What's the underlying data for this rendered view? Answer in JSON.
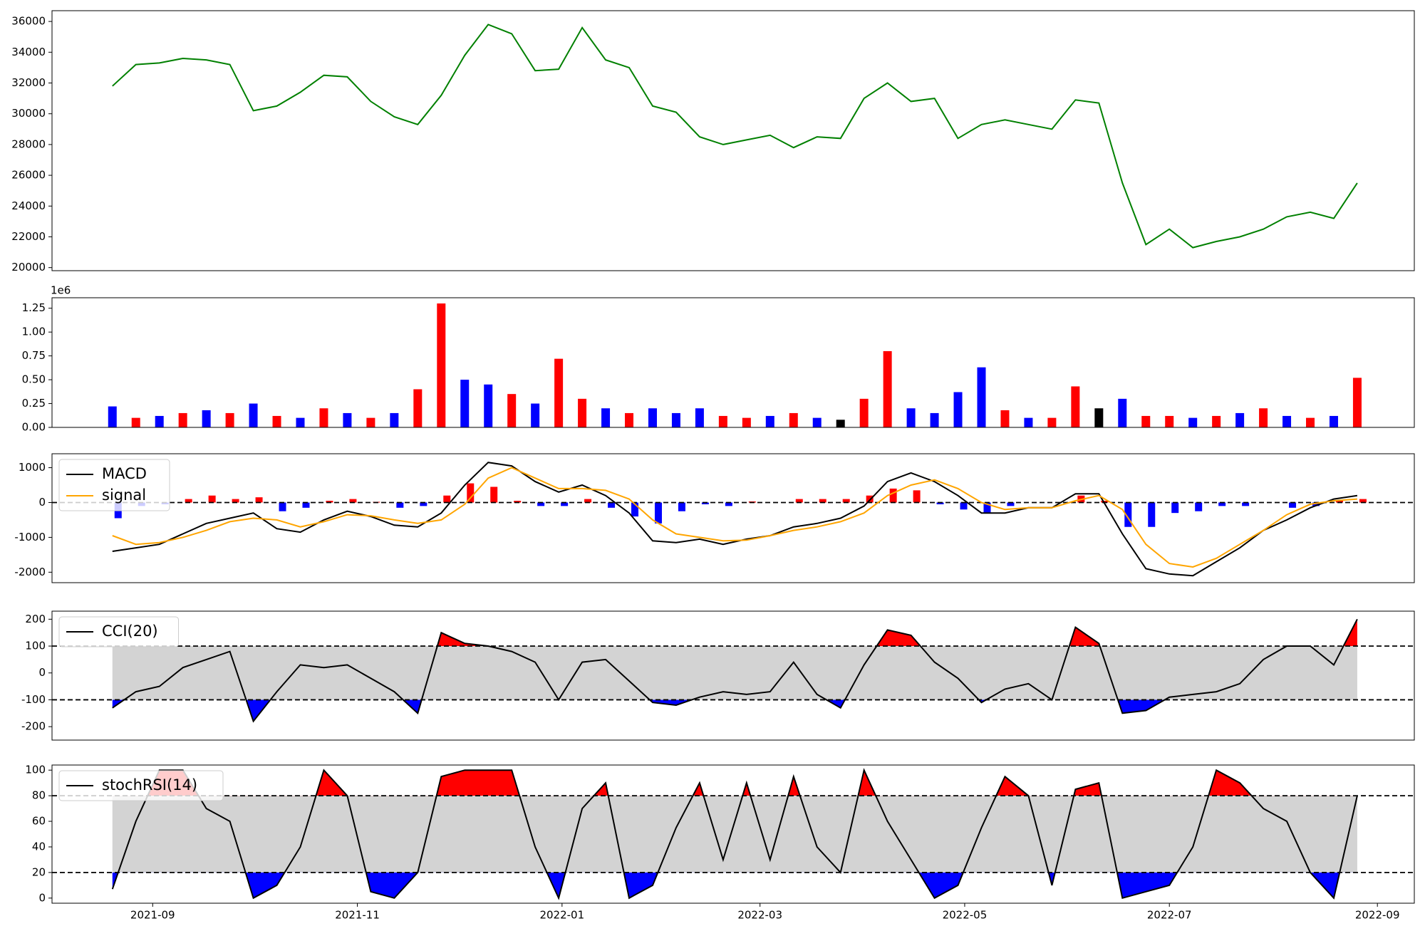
{
  "chart_data": {
    "type": "multi-panel",
    "x": [
      "2021-08-20",
      "2021-08-27",
      "2021-09-03",
      "2021-09-10",
      "2021-09-17",
      "2021-09-24",
      "2021-10-01",
      "2021-10-08",
      "2021-10-15",
      "2021-10-22",
      "2021-10-29",
      "2021-11-05",
      "2021-11-12",
      "2021-11-19",
      "2021-11-26",
      "2021-12-03",
      "2021-12-10",
      "2021-12-17",
      "2021-12-24",
      "2021-12-31",
      "2022-01-07",
      "2022-01-14",
      "2022-01-21",
      "2022-01-28",
      "2022-02-04",
      "2022-02-11",
      "2022-02-18",
      "2022-02-25",
      "2022-03-04",
      "2022-03-11",
      "2022-03-18",
      "2022-03-25",
      "2022-04-01",
      "2022-04-08",
      "2022-04-15",
      "2022-04-22",
      "2022-04-29",
      "2022-05-06",
      "2022-05-13",
      "2022-05-20",
      "2022-05-27",
      "2022-06-03",
      "2022-06-10",
      "2022-06-17",
      "2022-06-24",
      "2022-07-01",
      "2022-07-08",
      "2022-07-15",
      "2022-07-22",
      "2022-07-29",
      "2022-08-05",
      "2022-08-12",
      "2022-08-19",
      "2022-08-26"
    ],
    "xlim": [
      "2021-08-02",
      "2022-09-12"
    ],
    "xticks": [
      {
        "value": "2021-09-01",
        "label": "2021-09"
      },
      {
        "value": "2021-11-01",
        "label": "2021-11"
      },
      {
        "value": "2022-01-01",
        "label": "2022-01"
      },
      {
        "value": "2022-03-01",
        "label": "2022-03"
      },
      {
        "value": "2022-05-01",
        "label": "2022-05"
      },
      {
        "value": "2022-07-01",
        "label": "2022-07"
      },
      {
        "value": "2022-09-01",
        "label": "2022-09"
      }
    ],
    "panels": [
      {
        "type": "line",
        "ylim": [
          19800,
          36700
        ],
        "yticks": [
          20000,
          22000,
          24000,
          26000,
          28000,
          30000,
          32000,
          34000,
          36000
        ],
        "series": [
          {
            "color": "green",
            "values": [
              31800,
              33200,
              33300,
              33600,
              33500,
              33200,
              30200,
              30500,
              31400,
              32500,
              32400,
              30800,
              29800,
              29300,
              31200,
              33800,
              35800,
              35200,
              32800,
              32900,
              35600,
              33500,
              33000,
              30500,
              30100,
              28500,
              28000,
              28300,
              28600,
              27800,
              28500,
              28400,
              31000,
              32000,
              30800,
              31000,
              28400,
              29300,
              29600,
              29300,
              29000,
              30900,
              30700,
              25500,
              21500,
              22500,
              21300,
              21700,
              22000,
              22500,
              23300,
              23600,
              23200,
              25500
            ]
          }
        ]
      },
      {
        "type": "bar",
        "offset_text": "1e6",
        "ylim": [
          0,
          1.36
        ],
        "yticks": [
          {
            "value": 0,
            "label": "0.00"
          },
          {
            "value": 0.25,
            "label": "0.25"
          },
          {
            "value": 0.5,
            "label": "0.50"
          },
          {
            "value": 0.75,
            "label": "0.75"
          },
          {
            "value": 1,
            "label": "1.00"
          },
          {
            "value": 1.25,
            "label": "1.25"
          }
        ],
        "values": [
          0.22,
          0.1,
          0.12,
          0.15,
          0.18,
          0.15,
          0.25,
          0.12,
          0.1,
          0.2,
          0.15,
          0.1,
          0.15,
          0.4,
          1.3,
          0.5,
          0.45,
          0.35,
          0.25,
          0.72,
          0.3,
          0.2,
          0.15,
          0.2,
          0.15,
          0.2,
          0.12,
          0.1,
          0.12,
          0.15,
          0.1,
          0.08,
          0.3,
          0.8,
          0.2,
          0.15,
          0.37,
          0.63,
          0.18,
          0.1,
          0.1,
          0.43,
          0.2,
          0.3,
          0.12,
          0.12,
          0.1,
          0.12,
          0.15,
          0.2,
          0.12,
          0.1,
          0.12,
          0.52
        ],
        "colors": [
          "blue",
          "red",
          "blue",
          "red",
          "blue",
          "red",
          "blue",
          "red",
          "blue",
          "red",
          "blue",
          "red",
          "blue",
          "red",
          "red",
          "blue",
          "blue",
          "red",
          "blue",
          "red",
          "red",
          "blue",
          "red",
          "blue",
          "blue",
          "blue",
          "red",
          "red",
          "blue",
          "red",
          "blue",
          "black",
          "red",
          "red",
          "blue",
          "blue",
          "blue",
          "blue",
          "red",
          "blue",
          "red",
          "red",
          "black",
          "blue",
          "red",
          "red",
          "blue",
          "red",
          "blue",
          "red",
          "blue",
          "red",
          "blue",
          "red"
        ]
      },
      {
        "type": "line",
        "ylim": [
          -2300,
          1400
        ],
        "yticks": [
          -2000,
          -1000,
          0,
          1000
        ],
        "hlines": [
          0
        ],
        "legend": "upper left",
        "series": [
          {
            "name": "MACD",
            "color": "black",
            "values": [
              -1400,
              -1300,
              -1200,
              -900,
              -600,
              -450,
              -300,
              -750,
              -850,
              -500,
              -250,
              -400,
              -650,
              -700,
              -300,
              500,
              1150,
              1050,
              600,
              300,
              500,
              200,
              -300,
              -1100,
              -1150,
              -1050,
              -1200,
              -1050,
              -950,
              -700,
              -600,
              -450,
              -100,
              600,
              850,
              600,
              200,
              -300,
              -300,
              -150,
              -150,
              250,
              250,
              -900,
              -1900,
              -2050,
              -2100,
              -1700,
              -1300,
              -800,
              -500,
              -150,
              100,
              200
            ]
          },
          {
            "name": "signal",
            "color": "orange",
            "values": [
              -950,
              -1200,
              -1150,
              -1000,
              -800,
              -550,
              -450,
              -500,
              -700,
              -550,
              -350,
              -380,
              -500,
              -600,
              -500,
              -50,
              700,
              1000,
              700,
              400,
              400,
              350,
              100,
              -500,
              -900,
              -1000,
              -1100,
              -1080,
              -950,
              -800,
              -700,
              -550,
              -300,
              200,
              500,
              650,
              400,
              0,
              -200,
              -150,
              -150,
              50,
              200,
              -200,
              -1200,
              -1750,
              -1850,
              -1600,
              -1200,
              -800,
              -350,
              -50,
              50,
              100
            ]
          }
        ],
        "histogram": {
          "pos_color": "red",
          "neg_color": "blue",
          "values": [
            -450,
            -100,
            -50,
            100,
            200,
            100,
            150,
            -250,
            -150,
            50,
            100,
            20,
            -150,
            -100,
            200,
            550,
            450,
            50,
            -100,
            -100,
            100,
            -150,
            -400,
            -600,
            -250,
            -50,
            -100,
            30,
            0,
            100,
            100,
            100,
            200,
            400,
            350,
            -50,
            -200,
            -300,
            -100,
            0,
            0,
            200,
            50,
            -700,
            -700,
            -300,
            -250,
            -100,
            -100,
            0,
            -150,
            -100,
            50,
            100
          ]
        }
      },
      {
        "type": "line",
        "ylim": [
          -250,
          230
        ],
        "yticks": [
          -200,
          -100,
          0,
          100,
          200
        ],
        "hlines": [
          -100,
          100
        ],
        "band_color": "lightgray",
        "fill_above": "red",
        "fill_below": "blue",
        "legend": "upper left",
        "series": [
          {
            "name": "CCI(20)",
            "color": "black",
            "values": [
              -130,
              -70,
              -50,
              20,
              50,
              80,
              -180,
              -70,
              30,
              20,
              30,
              -20,
              -70,
              -150,
              150,
              110,
              100,
              80,
              40,
              -100,
              40,
              50,
              -30,
              -110,
              -120,
              -90,
              -70,
              -80,
              -70,
              40,
              -80,
              -130,
              30,
              160,
              140,
              40,
              -20,
              -110,
              -60,
              -40,
              -100,
              170,
              110,
              -150,
              -140,
              -90,
              -80,
              -70,
              -40,
              50,
              100,
              100,
              30,
              200
            ]
          }
        ]
      },
      {
        "type": "line",
        "ylim": [
          -4,
          104
        ],
        "yticks": [
          0,
          20,
          40,
          60,
          80,
          100
        ],
        "hlines": [
          20,
          80
        ],
        "band_color": "lightgray",
        "fill_above": "red",
        "fill_below": "blue",
        "legend": "upper left",
        "series": [
          {
            "name": "stochRSI(14)",
            "color": "black",
            "values": [
              7,
              60,
              100,
              100,
              70,
              60,
              0,
              10,
              40,
              100,
              80,
              5,
              0,
              20,
              95,
              100,
              100,
              100,
              40,
              0,
              70,
              90,
              0,
              10,
              55,
              90,
              30,
              90,
              30,
              95,
              40,
              20,
              100,
              60,
              30,
              0,
              10,
              55,
              95,
              80,
              10,
              85,
              90,
              0,
              5,
              10,
              40,
              100,
              90,
              70,
              60,
              20,
              0,
              80
            ]
          }
        ]
      }
    ]
  }
}
